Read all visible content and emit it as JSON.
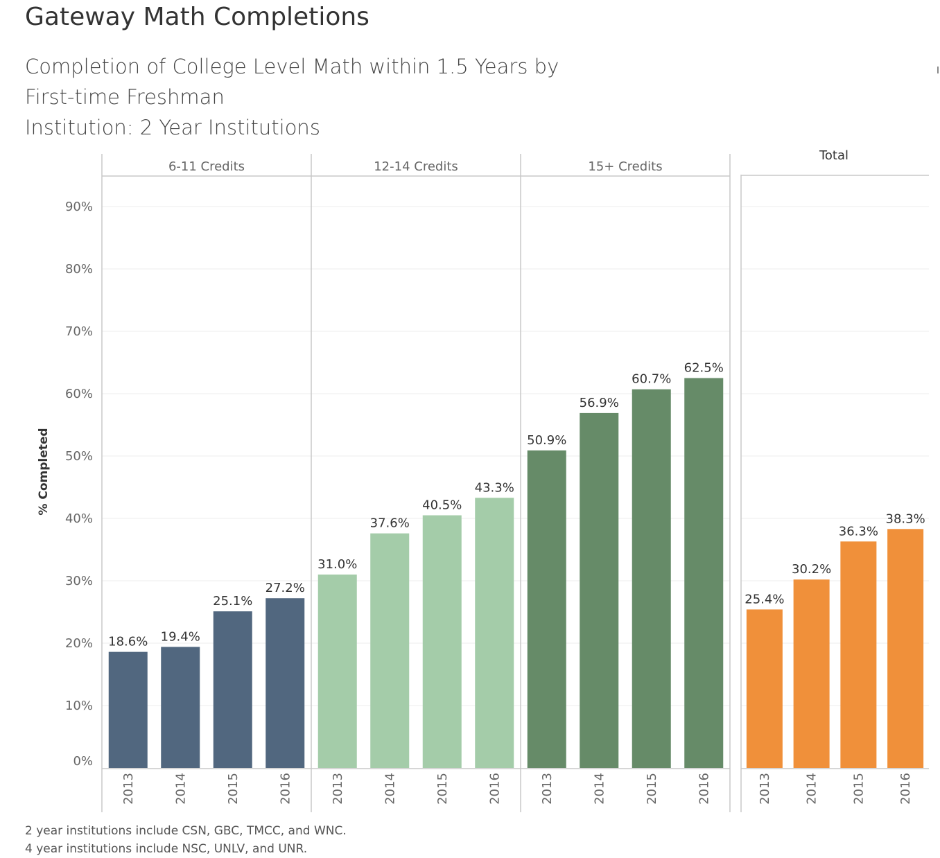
{
  "title": "Gateway Math Completions",
  "subtitle": {
    "line1": "Completion of College Level Math within 1.5 Years by",
    "line2": "First-time Freshman",
    "line3": "Institution:  2 Year Institutions"
  },
  "footnote": {
    "line1": "2 year institutions include CSN, GBC, TMCC, and WNC.",
    "line2": "4 year institutions include NSC, UNLV, and UNR."
  },
  "chart_data": {
    "type": "bar",
    "ylabel": "% Completed",
    "ylim": [
      0,
      95
    ],
    "yticks": [
      "0%",
      "10%",
      "20%",
      "30%",
      "40%",
      "50%",
      "60%",
      "70%",
      "80%",
      "90%"
    ],
    "grid": true,
    "categories": [
      "2013",
      "2014",
      "2015",
      "2016"
    ],
    "panels": [
      {
        "name": "6-11 Credits",
        "color": "#51677f",
        "values": [
          18.6,
          19.4,
          25.1,
          27.2
        ],
        "labels": [
          "18.6%",
          "19.4%",
          "25.1%",
          "27.2%"
        ]
      },
      {
        "name": "12-14 Credits",
        "color": "#a4cca9",
        "values": [
          31.0,
          37.6,
          40.5,
          43.3
        ],
        "labels": [
          "31.0%",
          "37.6%",
          "40.5%",
          "43.3%"
        ]
      },
      {
        "name": "15+ Credits",
        "color": "#668b68",
        "values": [
          50.9,
          56.9,
          60.7,
          62.5
        ],
        "labels": [
          "50.9%",
          "56.9%",
          "60.7%",
          "62.5%"
        ]
      },
      {
        "name": "Total",
        "color": "#f0903a",
        "values": [
          25.4,
          30.2,
          36.3,
          38.3
        ],
        "labels": [
          "25.4%",
          "30.2%",
          "36.3%",
          "38.3%"
        ]
      }
    ]
  }
}
